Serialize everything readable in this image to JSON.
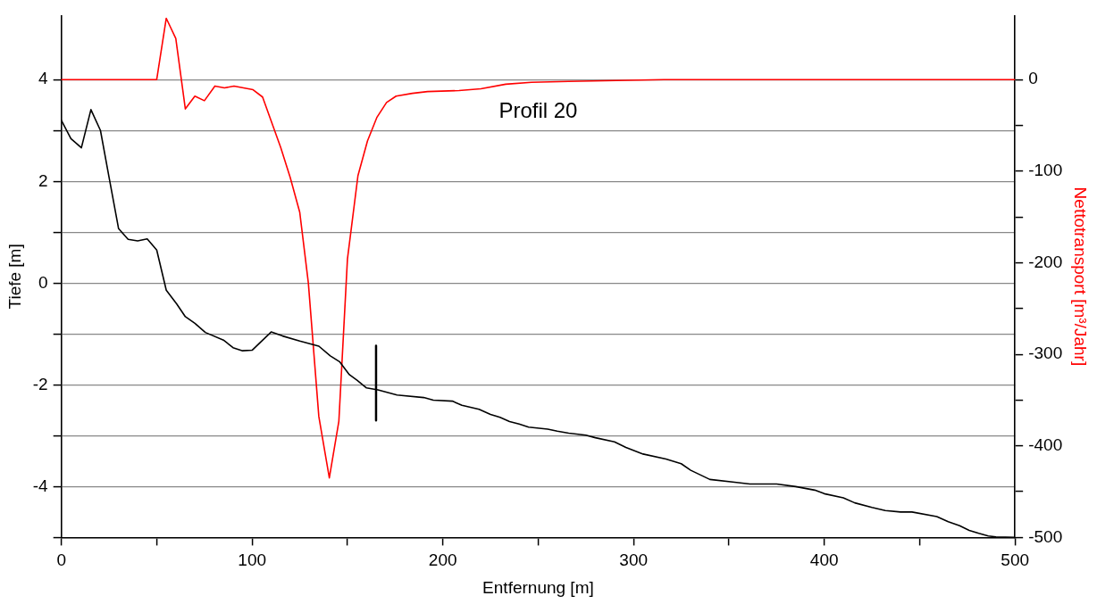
{
  "chart_data": {
    "type": "line",
    "xlabel": "Entfernung [m]",
    "ylabel": "Tiefe [m]",
    "y2label": "Nettotransport [m³/Jahr]",
    "annotations": [
      "Profil 20"
    ],
    "xlim": [
      0,
      500
    ],
    "xticks": [
      0,
      {
        "value": 50,
        "label": null
      },
      100,
      {
        "value": 150,
        "label": null
      },
      200,
      {
        "value": 250,
        "label": null
      },
      300,
      {
        "value": 350,
        "label": null
      },
      400,
      {
        "value": 450,
        "label": null
      },
      500
    ],
    "ylim": [
      -5,
      5.26
    ],
    "yticks": [
      {
        "value": -5,
        "label": null
      },
      -4,
      {
        "value": -3,
        "label": null
      },
      -2,
      {
        "value": -1,
        "label": null
      },
      0,
      {
        "value": 1,
        "label": null
      },
      2,
      {
        "value": 3,
        "label": null
      },
      4
    ],
    "y2lim": [
      -500,
      70
    ],
    "y2ticks": [
      -500,
      {
        "value": -450,
        "label": null
      },
      -400,
      {
        "value": -350,
        "label": null
      },
      -300,
      {
        "value": -250,
        "label": null
      },
      -200,
      {
        "value": -150,
        "label": null
      },
      -100,
      {
        "value": -50,
        "label": null
      },
      0
    ],
    "grid": "y",
    "legend": false,
    "marker": "none",
    "line_style": "solid",
    "series": [
      {
        "color": "#000000",
        "x": [
          0,
          5,
          10.5,
          15.5,
          20.5,
          25,
          30,
          35,
          40,
          45,
          50,
          55,
          60.5,
          65,
          70,
          75.5,
          85,
          90,
          95,
          100,
          110,
          116,
          125,
          135,
          141,
          146,
          151,
          155,
          160,
          166,
          176,
          190,
          195,
          205,
          210,
          219,
          225,
          230,
          235,
          240,
          245,
          255,
          260,
          266,
          275,
          280,
          290,
          296,
          305,
          317,
          325,
          330,
          340,
          354,
          361,
          375,
          385,
          395,
          400,
          410,
          416,
          425,
          432,
          440,
          446,
          459,
          465,
          471,
          476,
          481,
          486,
          490,
          500
        ],
        "values": [
          3.2,
          2.84,
          2.66,
          3.41,
          3.0,
          2.08,
          1.07,
          0.86,
          0.83,
          0.87,
          0.65,
          -0.14,
          -0.41,
          -0.66,
          -0.79,
          -0.97,
          -1.12,
          -1.27,
          -1.33,
          -1.32,
          -0.96,
          -1.04,
          -1.14,
          -1.24,
          -1.43,
          -1.55,
          -1.8,
          -1.91,
          -2.06,
          -2.1,
          -2.2,
          -2.25,
          -2.3,
          -2.32,
          -2.4,
          -2.48,
          -2.58,
          -2.64,
          -2.72,
          -2.77,
          -2.83,
          -2.87,
          -2.91,
          -2.95,
          -2.99,
          -3.04,
          -3.12,
          -3.23,
          -3.36,
          -3.46,
          -3.55,
          -3.68,
          -3.86,
          -3.92,
          -3.95,
          -3.95,
          -4.0,
          -4.07,
          -4.14,
          -4.22,
          -4.32,
          -4.41,
          -4.47,
          -4.5,
          -4.5,
          -4.59,
          -4.69,
          -4.77,
          -4.86,
          -4.92,
          -4.97,
          -4.99,
          -5.0
        ]
      },
      {
        "color": "#000000",
        "x": [
          165,
          165
        ],
        "values": [
          -1.23,
          -2.7
        ]
      },
      {
        "color": "#ff0000",
        "axis": "y2",
        "x": [
          0,
          50,
          55,
          60,
          65,
          70,
          75,
          80.5,
          85.5,
          90.5,
          95.5,
          100.5,
          105.5,
          111,
          115,
          120,
          125,
          129.5,
          135,
          140.5,
          145.5,
          150,
          155.5,
          160.5,
          165.5,
          170.5,
          175.5,
          184,
          192,
          208.5,
          220,
          233,
          246.5,
          266,
          291,
          316,
          500
        ],
        "values": [
          0,
          0,
          67,
          45,
          -32,
          -18,
          -23,
          -7,
          -9,
          -7,
          -9,
          -11,
          -19,
          -51,
          -74,
          -107,
          -145,
          -222,
          -368,
          -435,
          -373,
          -196,
          -105,
          -67,
          -41,
          -25,
          -18,
          -15,
          -13,
          -12,
          -10,
          -5,
          -3,
          -2,
          -1,
          0,
          0
        ]
      }
    ]
  }
}
